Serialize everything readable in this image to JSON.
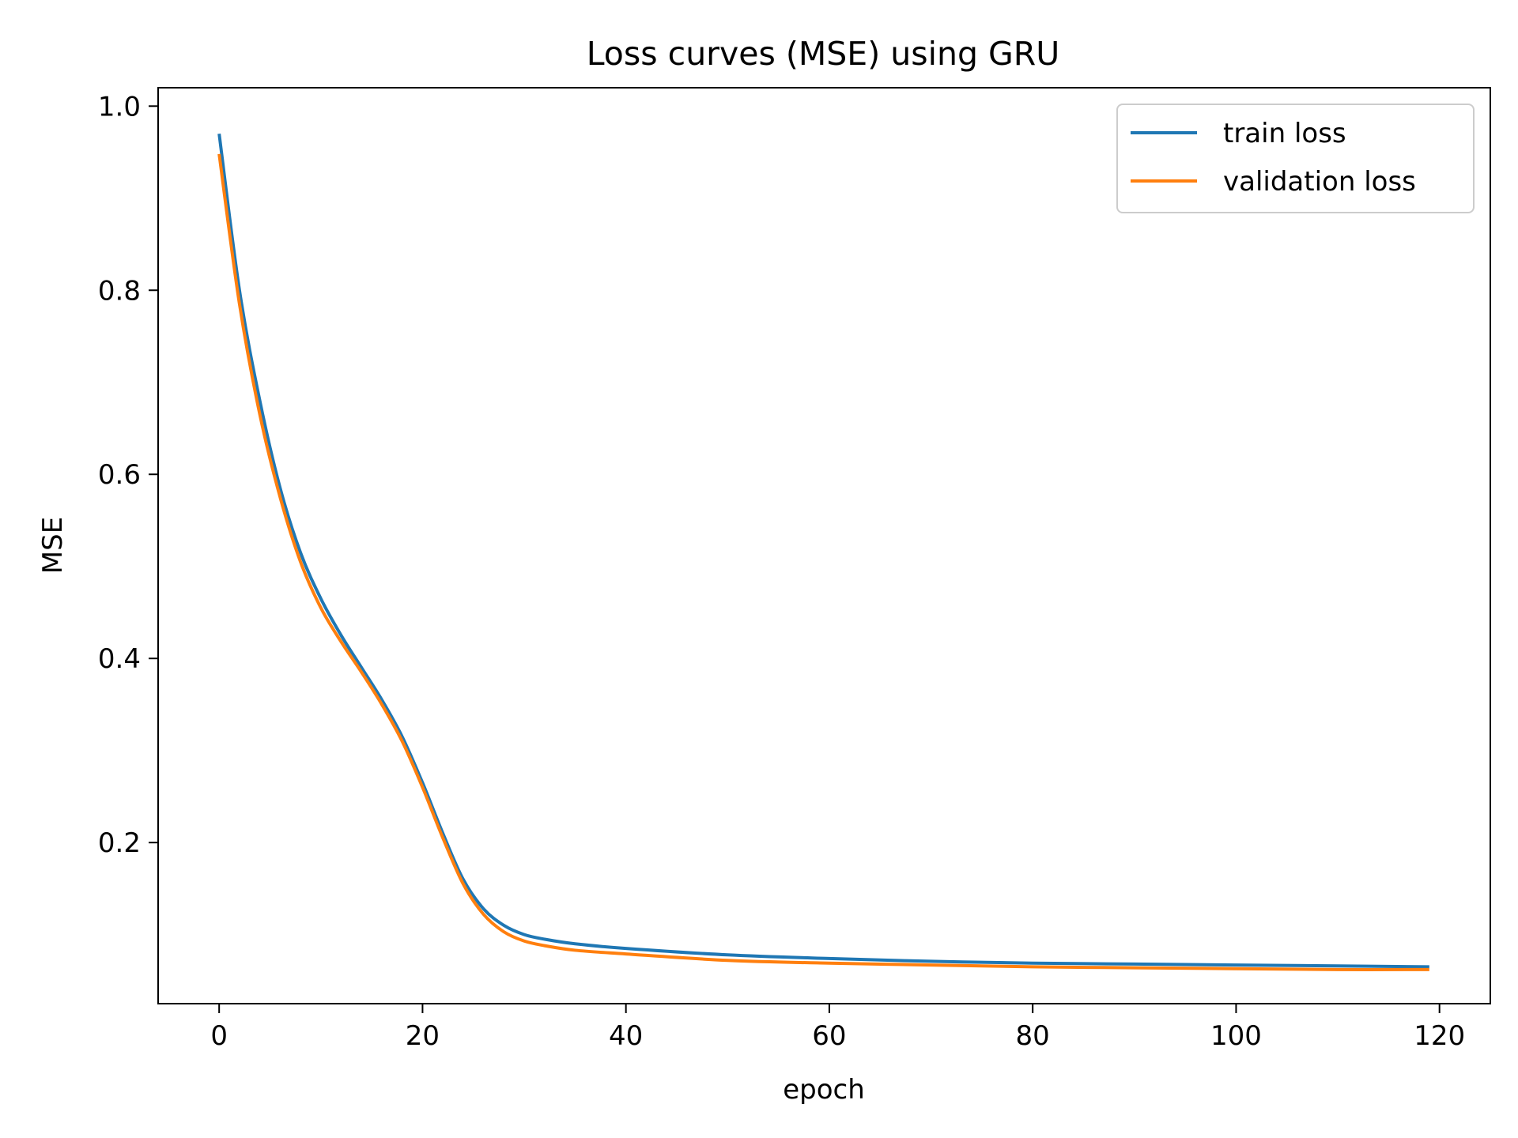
{
  "chart_data": {
    "type": "line",
    "title": "Loss curves (MSE) using GRU",
    "xlabel": "epoch",
    "ylabel": "MSE",
    "xlim": [
      -6,
      125
    ],
    "ylim": [
      0.025,
      1.02
    ],
    "xticks": [
      0,
      20,
      40,
      60,
      80,
      100,
      120
    ],
    "xtick_labels": [
      "0",
      "20",
      "40",
      "60",
      "80",
      "100",
      "120"
    ],
    "yticks": [
      0.2,
      0.4,
      0.6,
      0.8,
      1.0
    ],
    "ytick_labels": [
      "0.2",
      "0.4",
      "0.6",
      "0.8",
      "1.0"
    ],
    "grid": false,
    "legend_position": "top-right",
    "series": [
      {
        "name": "train loss",
        "color": "#1f77b4",
        "x": [
          0,
          2,
          4,
          6,
          8,
          10,
          12,
          14,
          16,
          18,
          20,
          22,
          24,
          26,
          28,
          30,
          32,
          35,
          40,
          50,
          60,
          70,
          80,
          90,
          100,
          110,
          119
        ],
        "y": [
          0.97,
          0.8,
          0.68,
          0.585,
          0.515,
          0.465,
          0.425,
          0.39,
          0.355,
          0.315,
          0.265,
          0.21,
          0.16,
          0.128,
          0.11,
          0.1,
          0.095,
          0.09,
          0.085,
          0.078,
          0.074,
          0.071,
          0.069,
          0.068,
          0.067,
          0.066,
          0.065
        ]
      },
      {
        "name": "validation loss",
        "color": "#ff7f0e",
        "x": [
          0,
          2,
          4,
          6,
          8,
          10,
          12,
          14,
          16,
          18,
          20,
          22,
          24,
          26,
          28,
          30,
          32,
          35,
          40,
          50,
          60,
          70,
          80,
          90,
          100,
          110,
          119
        ],
        "y": [
          0.948,
          0.785,
          0.665,
          0.575,
          0.505,
          0.455,
          0.418,
          0.385,
          0.35,
          0.31,
          0.26,
          0.205,
          0.155,
          0.122,
          0.103,
          0.093,
          0.088,
          0.083,
          0.079,
          0.072,
          0.069,
          0.067,
          0.065,
          0.064,
          0.063,
          0.062,
          0.062
        ]
      }
    ]
  }
}
